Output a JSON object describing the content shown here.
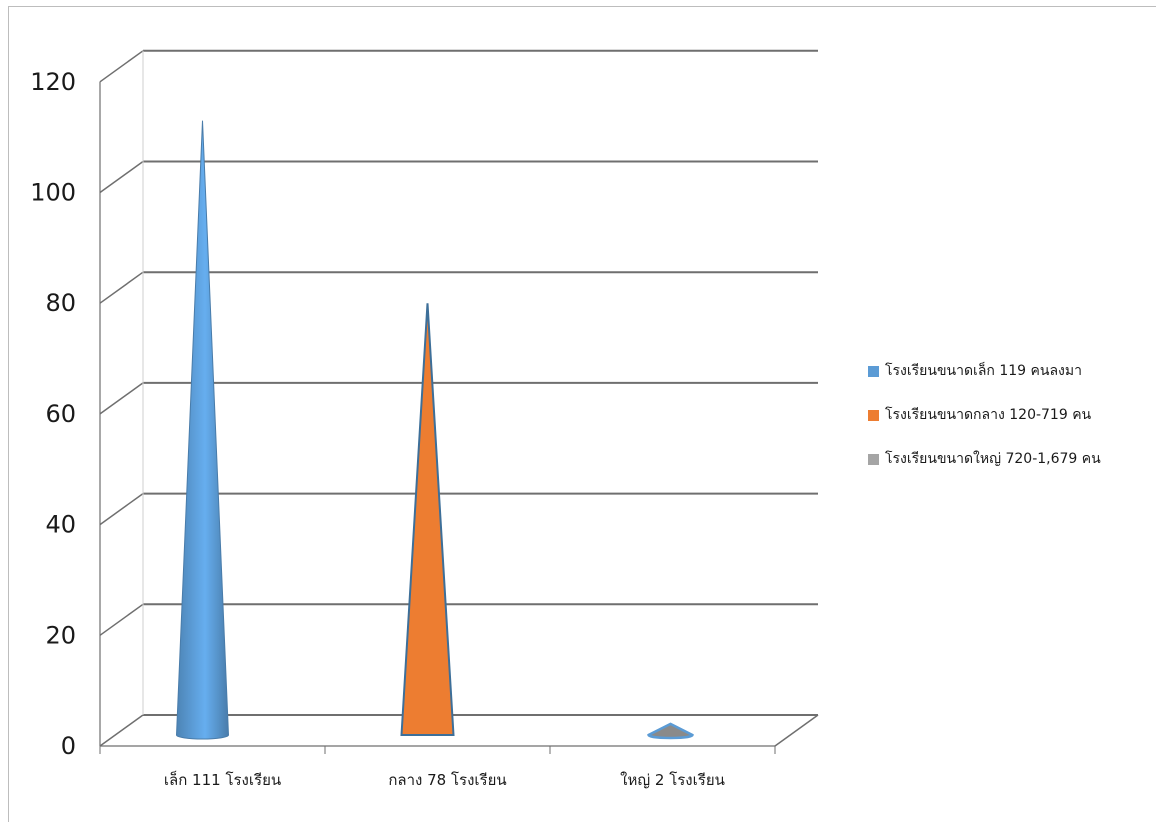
{
  "chart_data": {
    "type": "bar",
    "style": "3d-cone",
    "title": "",
    "xlabel": "",
    "ylabel": "",
    "ylim": [
      0,
      120
    ],
    "yticks": [
      0,
      20,
      40,
      60,
      80,
      100,
      120
    ],
    "grid": true,
    "legend_position": "right",
    "categories": [
      "เล็ก  111 โรงเรียน",
      "กลาง  78 โรงเรียน",
      "ใหญ่  2 โรงเรียน"
    ],
    "series": [
      {
        "name": "โรงเรียนขนาดเล็ก 119 คนลงมา",
        "color": "#5b9bd5",
        "values": [
          111,
          null,
          null
        ]
      },
      {
        "name": "โรงเรียนขนาดกลาง 120-719 คน",
        "color": "#ed7d31",
        "values": [
          null,
          78,
          null
        ]
      },
      {
        "name": "โรงเรียนขนาดใหญ่ 720-1,679 คน",
        "color": "#a5a5a5",
        "values": [
          null,
          null,
          2
        ]
      }
    ],
    "cone_colors": [
      "#5b9bd5",
      "#ed7d31",
      "#5b9bd5"
    ],
    "values": [
      111,
      78,
      2
    ]
  }
}
